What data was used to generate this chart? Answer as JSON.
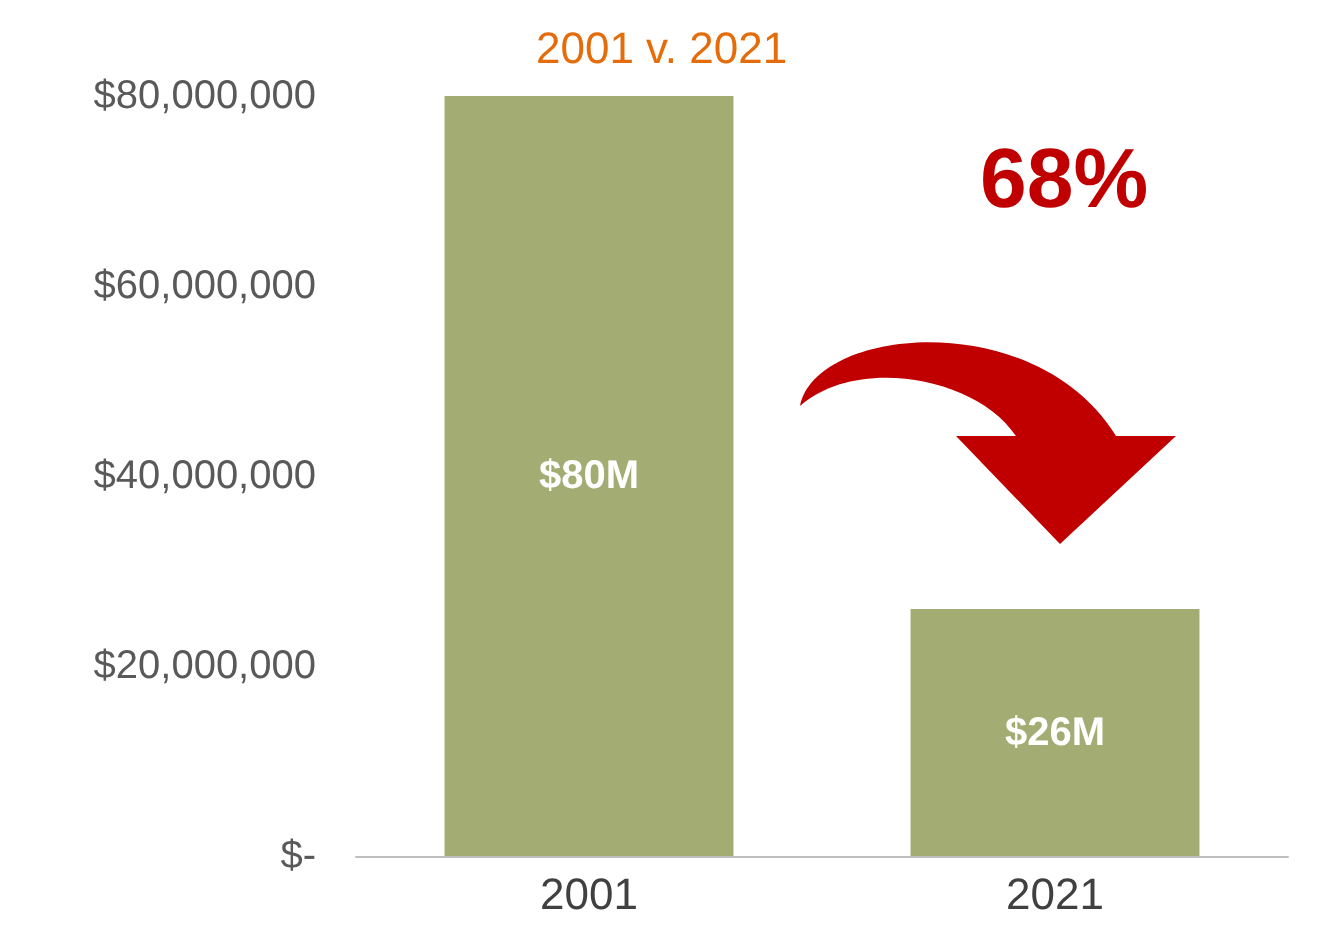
{
  "chart_data": {
    "type": "bar",
    "title": "2001 v. 2021",
    "categories": [
      "2001",
      "2021"
    ],
    "series": [
      {
        "color": "#a3ad73",
        "values": [
          80000000,
          26000000
        ],
        "value_labels": [
          "$80M",
          "$26M"
        ]
      }
    ],
    "ylim": [
      0,
      80000000
    ],
    "yticks": [
      {
        "value": 0,
        "label": "$-"
      },
      {
        "value": 20000000,
        "label": "$20,000,000"
      },
      {
        "value": 40000000,
        "label": "$40,000,000"
      },
      {
        "value": 60000000,
        "label": "$60,000,000"
      },
      {
        "value": 80000000,
        "label": "$80,000,000"
      }
    ],
    "annotations": [
      "68%"
    ],
    "grid": false
  }
}
